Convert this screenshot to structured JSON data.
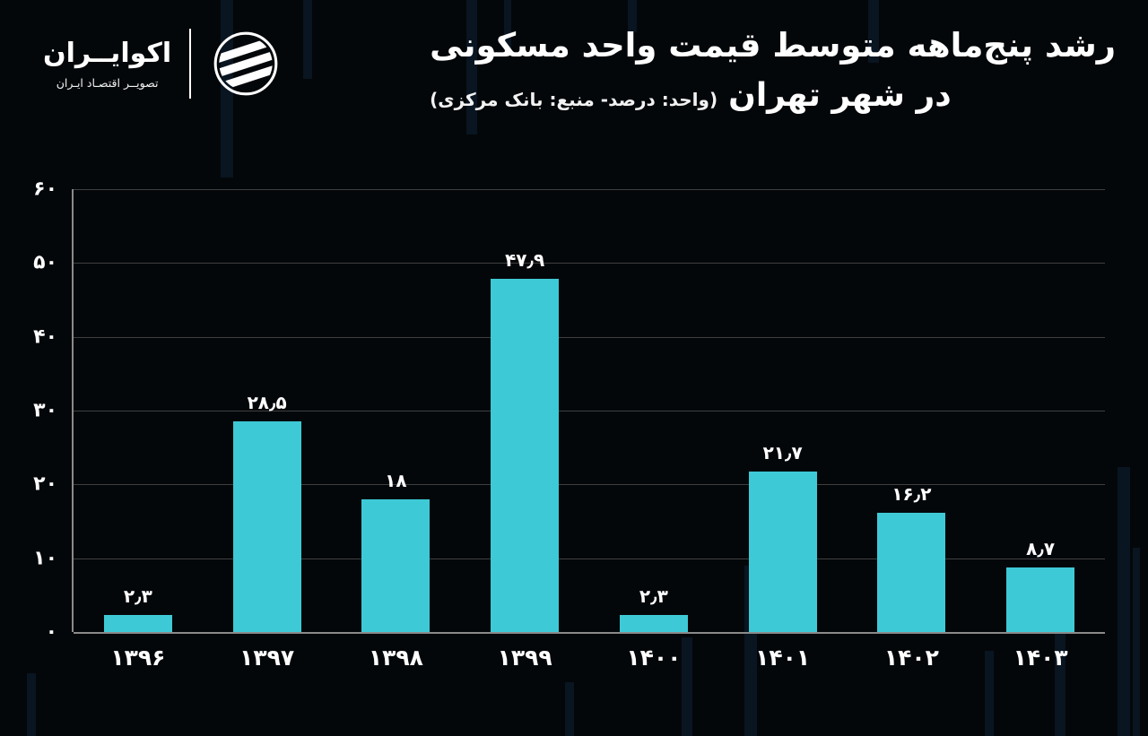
{
  "page": {
    "background": "#04070a",
    "text_color": "#ffffff"
  },
  "header": {
    "brand_name": "اکوایــران",
    "brand_tagline": "تصویــر اقتصـاد ایـران",
    "title_line1": "رشد پنج‌ماهه متوسط قیمت واحد مسکونی",
    "title_line2": "در شهر تهران",
    "subtitle_note": "(واحد: درصد- منبع: بانک مرکزی)"
  },
  "chart_data": {
    "type": "bar",
    "title": "رشد پنج‌ماهه متوسط قیمت واحد مسکونی در شهر تهران",
    "unit_note": "واحد: درصد",
    "source_note": "منبع: بانک مرکزی",
    "categories": [
      "۱۳۹۶",
      "۱۳۹۷",
      "۱۳۹۸",
      "۱۳۹۹",
      "۱۴۰۰",
      "۱۴۰۱",
      "۱۴۰۲",
      "۱۴۰۳"
    ],
    "values": [
      2.3,
      28.5,
      18,
      47.9,
      2.3,
      21.7,
      16.2,
      8.7
    ],
    "value_labels": [
      "۲٫۳",
      "۲۸٫۵",
      "۱۸",
      "۴۷٫۹",
      "۲٫۳",
      "۲۱٫۷",
      "۱۶٫۲",
      "۸٫۷"
    ],
    "xlabel": "",
    "ylabel": "",
    "ylim": [
      0,
      60
    ],
    "yticks": [
      0,
      10,
      20,
      30,
      40,
      50,
      60
    ],
    "ytick_labels": [
      "۰",
      "۱۰",
      "۲۰",
      "۳۰",
      "۴۰",
      "۵۰",
      "۶۰"
    ],
    "bar_color": "#3EC9D6",
    "grid": true,
    "gridline_color": "#3f3f3f",
    "legend": false
  }
}
